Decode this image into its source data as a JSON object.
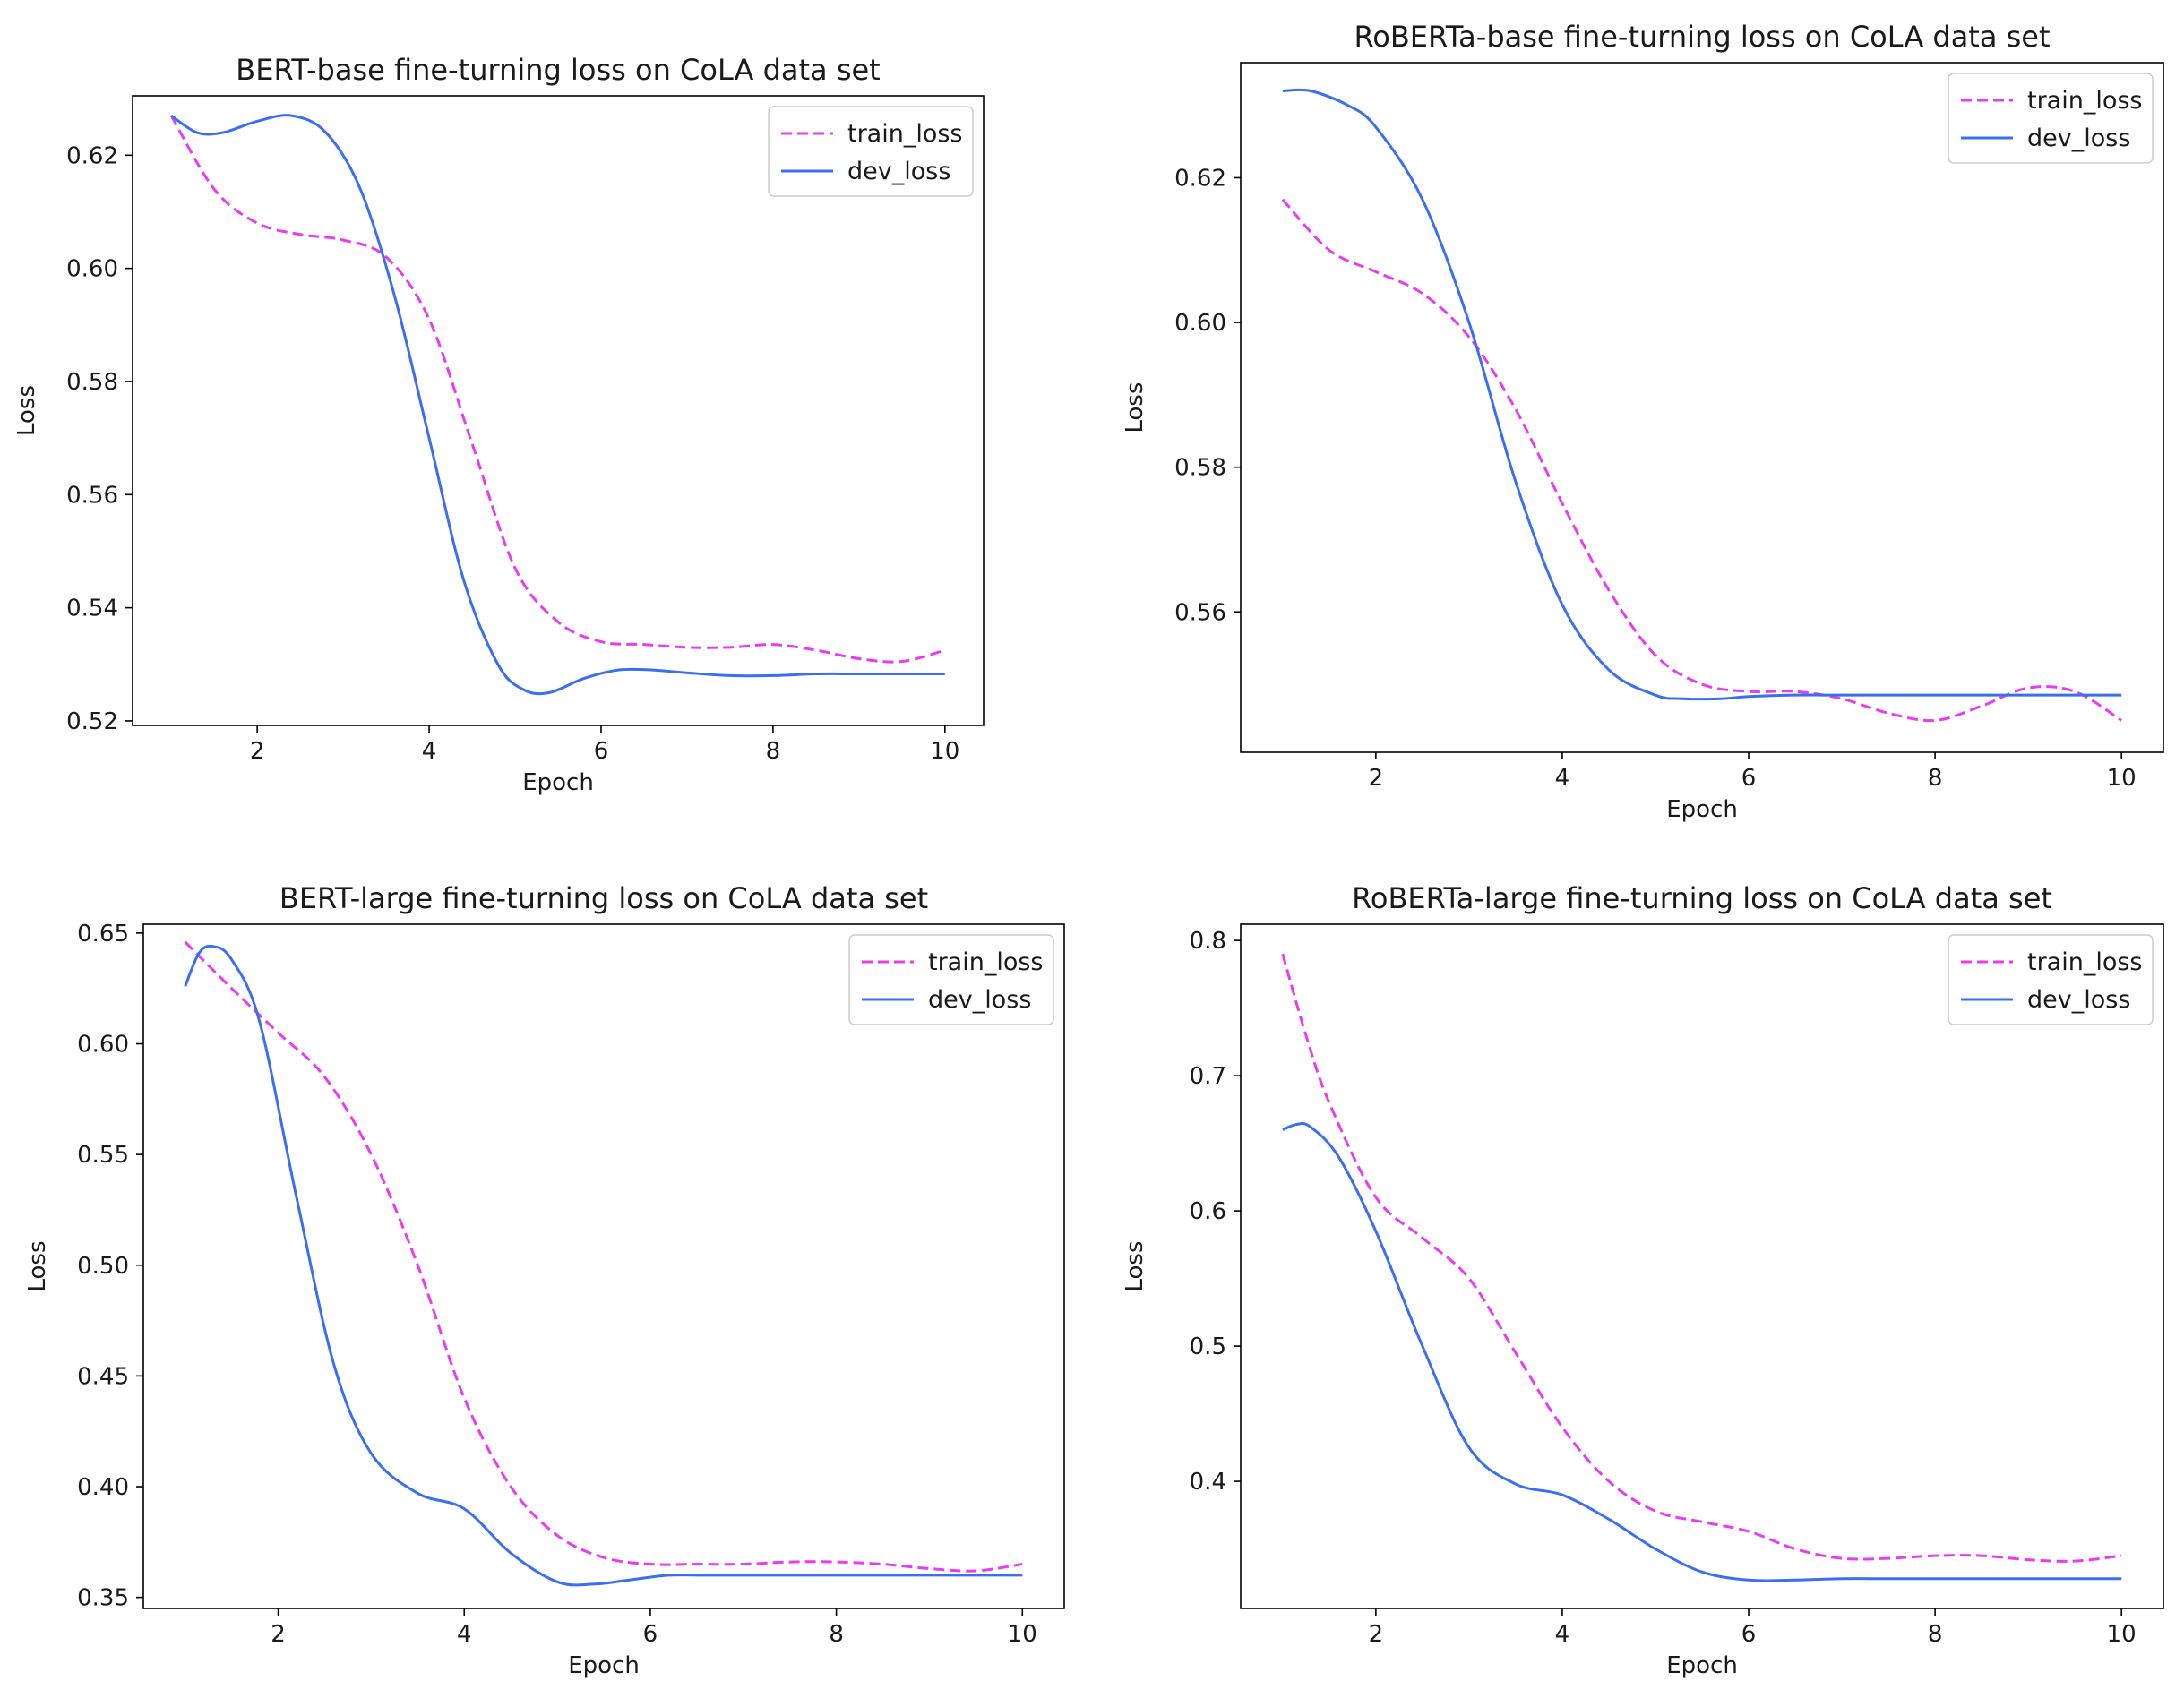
{
  "chart_data": [
    {
      "type": "line",
      "title": "BERT-base fine-turning loss on CoLA data set",
      "xlabel": "Epoch",
      "ylabel": "Loss",
      "xlim": [
        0.55,
        10.45
      ],
      "ylim": [
        0.5192,
        0.6305
      ],
      "xticks": [
        2,
        4,
        6,
        8,
        10
      ],
      "yticks": [
        0.52,
        0.54,
        0.56,
        0.58,
        0.6,
        0.62
      ],
      "ytick_labels": [
        "0.52",
        "0.54",
        "0.56",
        "0.58",
        "0.60",
        "0.62"
      ],
      "legend": "top-right",
      "grid": false,
      "series": [
        {
          "name": "train_loss",
          "style": "dashed",
          "color": "#e83cf2",
          "x": [
            1,
            1.5,
            2,
            2.5,
            3,
            3.5,
            4,
            4.5,
            5,
            5.5,
            6,
            6.5,
            7,
            7.5,
            8,
            8.5,
            9,
            9.5,
            10
          ],
          "y": [
            0.627,
            0.614,
            0.608,
            0.606,
            0.605,
            0.602,
            0.591,
            0.569,
            0.547,
            0.5375,
            0.534,
            0.5335,
            0.533,
            0.533,
            0.5335,
            0.5325,
            0.531,
            0.5305,
            0.5325
          ]
        },
        {
          "name": "dev_loss",
          "style": "solid",
          "color": "#3a6ff2",
          "x": [
            1,
            1.3,
            1.6,
            2,
            2.4,
            2.8,
            3.2,
            3.6,
            4,
            4.4,
            4.8,
            5.1,
            5.4,
            5.8,
            6.2,
            6.6,
            7,
            7.5,
            8,
            8.5,
            9,
            9.5,
            10
          ],
          "y": [
            0.627,
            0.624,
            0.624,
            0.626,
            0.627,
            0.624,
            0.614,
            0.595,
            0.57,
            0.545,
            0.53,
            0.5255,
            0.525,
            0.5275,
            0.529,
            0.529,
            0.5285,
            0.528,
            0.528,
            0.5283,
            0.5283,
            0.5283,
            0.5283
          ]
        }
      ]
    },
    {
      "type": "line",
      "title": "RoBERTa-base fine-turning loss on CoLA data set",
      "xlabel": "Epoch",
      "ylabel": "Loss",
      "xlim": [
        0.55,
        10.45
      ],
      "ylim": [
        0.5406,
        0.6359
      ],
      "xticks": [
        2,
        4,
        6,
        8,
        10
      ],
      "yticks": [
        0.56,
        0.58,
        0.6,
        0.62
      ],
      "ytick_labels": [
        "0.56",
        "0.58",
        "0.60",
        "0.62"
      ],
      "legend": "top-right",
      "grid": false,
      "series": [
        {
          "name": "train_loss",
          "style": "dashed",
          "color": "#e83cf2",
          "x": [
            1,
            1.5,
            2,
            2.5,
            3,
            3.5,
            4,
            4.5,
            5,
            5.5,
            6,
            6.5,
            7,
            7.5,
            8,
            8.5,
            9,
            9.5,
            10
          ],
          "y": [
            0.617,
            0.61,
            0.607,
            0.604,
            0.598,
            0.588,
            0.575,
            0.563,
            0.554,
            0.55,
            0.549,
            0.549,
            0.548,
            0.546,
            0.545,
            0.547,
            0.5495,
            0.549,
            0.545
          ]
        },
        {
          "name": "dev_loss",
          "style": "solid",
          "color": "#3a6ff2",
          "x": [
            1,
            1.3,
            1.7,
            2,
            2.5,
            3,
            3.5,
            4,
            4.5,
            5,
            5.3,
            5.7,
            6,
            6.5,
            7,
            7.5,
            8,
            8.5,
            9,
            9.5,
            10
          ],
          "y": [
            0.632,
            0.632,
            0.63,
            0.627,
            0.617,
            0.6,
            0.578,
            0.561,
            0.552,
            0.5485,
            0.548,
            0.548,
            0.5483,
            0.5485,
            0.5485,
            0.5485,
            0.5485,
            0.5485,
            0.5485,
            0.5485,
            0.5485
          ]
        }
      ]
    },
    {
      "type": "line",
      "title": "BERT-large fine-turning loss on CoLA data set",
      "xlabel": "Epoch",
      "ylabel": "Loss",
      "xlim": [
        0.55,
        10.45
      ],
      "ylim": [
        0.345,
        0.654
      ],
      "xticks": [
        2,
        4,
        6,
        8,
        10
      ],
      "yticks": [
        0.35,
        0.4,
        0.45,
        0.5,
        0.55,
        0.6,
        0.65
      ],
      "ytick_labels": [
        "0.35",
        "0.40",
        "0.45",
        "0.50",
        "0.55",
        "0.60",
        "0.65"
      ],
      "legend": "top-right",
      "grid": false,
      "series": [
        {
          "name": "train_loss",
          "style": "dashed",
          "color": "#e83cf2",
          "x": [
            1,
            1.5,
            2,
            2.5,
            3,
            3.5,
            4,
            4.5,
            5,
            5.5,
            6,
            6.5,
            7,
            7.5,
            8,
            8.5,
            9,
            9.5,
            10
          ],
          "y": [
            0.646,
            0.625,
            0.605,
            0.585,
            0.55,
            0.5,
            0.44,
            0.4,
            0.378,
            0.368,
            0.365,
            0.365,
            0.365,
            0.366,
            0.366,
            0.365,
            0.363,
            0.362,
            0.365
          ]
        },
        {
          "name": "dev_loss",
          "style": "solid",
          "color": "#3a6ff2",
          "x": [
            1,
            1.15,
            1.3,
            1.5,
            1.8,
            2.2,
            2.6,
            3,
            3.5,
            4,
            4.5,
            5,
            5.4,
            5.8,
            6.2,
            6.6,
            7,
            7.5,
            8,
            8.5,
            9,
            9.5,
            10
          ],
          "y": [
            0.626,
            0.641,
            0.644,
            0.638,
            0.61,
            0.53,
            0.455,
            0.415,
            0.397,
            0.39,
            0.37,
            0.357,
            0.356,
            0.358,
            0.36,
            0.36,
            0.36,
            0.36,
            0.36,
            0.36,
            0.36,
            0.36,
            0.36
          ]
        }
      ]
    },
    {
      "type": "line",
      "title": "RoBERTa-large fine-turning loss on CoLA data set",
      "xlabel": "Epoch",
      "ylabel": "Loss",
      "xlim": [
        0.55,
        10.45
      ],
      "ylim": [
        0.306,
        0.812
      ],
      "xticks": [
        2,
        4,
        6,
        8,
        10
      ],
      "yticks": [
        0.4,
        0.5,
        0.6,
        0.7,
        0.8
      ],
      "ytick_labels": [
        "0.4",
        "0.5",
        "0.6",
        "0.7",
        "0.8"
      ],
      "legend": "top-right",
      "grid": false,
      "series": [
        {
          "name": "train_loss",
          "style": "dashed",
          "color": "#e83cf2",
          "x": [
            1,
            1.25,
            1.5,
            2,
            2.5,
            3,
            3.5,
            4,
            4.5,
            5,
            5.5,
            6,
            6.5,
            7,
            7.5,
            8,
            8.5,
            9,
            9.5,
            10
          ],
          "y": [
            0.79,
            0.73,
            0.68,
            0.61,
            0.58,
            0.55,
            0.495,
            0.44,
            0.4,
            0.378,
            0.37,
            0.363,
            0.35,
            0.343,
            0.343,
            0.345,
            0.345,
            0.342,
            0.341,
            0.345
          ]
        },
        {
          "name": "dev_loss",
          "style": "solid",
          "color": "#3a6ff2",
          "x": [
            1,
            1.15,
            1.3,
            1.6,
            2,
            2.5,
            3,
            3.5,
            4,
            4.5,
            5,
            5.5,
            6,
            6.5,
            7,
            7.5,
            8,
            8.5,
            9,
            9.5,
            10
          ],
          "y": [
            0.66,
            0.664,
            0.662,
            0.64,
            0.585,
            0.5,
            0.425,
            0.398,
            0.39,
            0.372,
            0.35,
            0.333,
            0.327,
            0.327,
            0.328,
            0.328,
            0.328,
            0.328,
            0.328,
            0.328,
            0.328
          ]
        }
      ]
    }
  ]
}
